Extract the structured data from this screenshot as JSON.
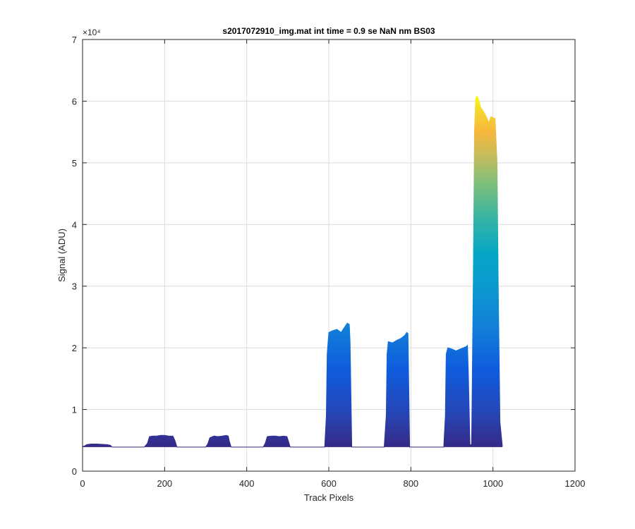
{
  "chart_data": {
    "type": "area",
    "title": "s2017072910_img.mat int time = 0.9 se  NaN nm BS03",
    "xlabel": "Track Pixels",
    "ylabel": "Signal (ADU)",
    "xlim": [
      0,
      1200
    ],
    "ylim": [
      0,
      70000
    ],
    "y_exponent_label": "×10⁴",
    "xticks": [
      0,
      200,
      400,
      600,
      800,
      1000,
      1200
    ],
    "xtick_labels": [
      "0",
      "200",
      "400",
      "600",
      "800",
      "1000",
      "1200"
    ],
    "yticks": [
      0,
      10000,
      20000,
      30000,
      40000,
      50000,
      60000,
      70000
    ],
    "ytick_labels": [
      "0",
      "1",
      "2",
      "3",
      "4",
      "5",
      "6",
      "7"
    ],
    "grid": true,
    "colormap": "parula (color by signal value)",
    "series": [
      {
        "x": [
          0,
          5,
          10,
          20,
          35,
          50,
          60,
          68,
          72,
          100,
          150,
          158,
          163,
          170,
          180,
          190,
          200,
          210,
          220,
          225,
          230,
          300,
          305,
          310,
          320,
          330,
          340,
          350,
          355,
          358,
          362,
          440,
          445,
          450,
          460,
          470,
          480,
          490,
          498,
          502,
          506,
          590,
          594,
          596,
          600,
          610,
          620,
          630,
          640,
          645,
          650,
          652,
          656,
          735,
          740,
          742,
          745,
          755,
          765,
          775,
          785,
          790,
          793,
          797,
          880,
          884,
          886,
          890,
          900,
          910,
          920,
          935,
          938,
          940,
          944,
          946,
          948,
          952,
          955,
          958,
          962,
          966,
          970,
          980,
          990,
          995,
          1000,
          1005,
          1010,
          1013,
          1017,
          1023
        ],
        "y": [
          4000,
          4100,
          4300,
          4400,
          4400,
          4350,
          4300,
          4200,
          3900,
          3900,
          3900,
          4500,
          5600,
          5700,
          5700,
          5800,
          5800,
          5700,
          5700,
          5000,
          3900,
          3900,
          4400,
          5400,
          5700,
          5600,
          5700,
          5800,
          5700,
          4800,
          3900,
          3900,
          4500,
          5600,
          5700,
          5700,
          5600,
          5700,
          5600,
          4800,
          3900,
          3900,
          9000,
          19000,
          22500,
          22800,
          23000,
          22500,
          23500,
          24000,
          23800,
          21000,
          3900,
          3900,
          9000,
          19000,
          21000,
          20800,
          21200,
          21500,
          22000,
          22500,
          22300,
          3900,
          3900,
          9000,
          19000,
          20000,
          19800,
          19500,
          19800,
          20200,
          20400,
          16000,
          4300,
          4300,
          4300,
          30000,
          55000,
          60500,
          60800,
          60000,
          59000,
          58000,
          56500,
          57500,
          57300,
          57200,
          50000,
          30000,
          8000,
          4000
        ]
      }
    ]
  }
}
